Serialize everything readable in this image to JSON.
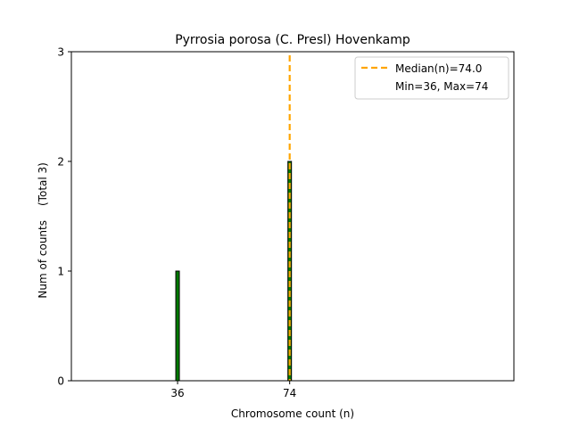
{
  "chart_data": {
    "type": "bar",
    "title": "Pyrrosia porosa (C. Presl) Hovenkamp",
    "xlabel": "Chromosome count (n)",
    "ylabel": "Num of counts",
    "ylabel_total": "(Total 3)",
    "x": [
      36,
      74
    ],
    "values": [
      1,
      2
    ],
    "xlim": [
      0,
      150
    ],
    "ylim": [
      0,
      3
    ],
    "xticks": [
      "36",
      "74"
    ],
    "yticks": [
      "0",
      "1",
      "2",
      "3"
    ],
    "median": 74.0,
    "legend": {
      "placement": "top-right",
      "median_label": "Median(n)=74.0",
      "range_label": "Min=36, Max=74"
    },
    "colors": {
      "bar_fill": "#007a00",
      "bar_edge": "#000000",
      "median_line": "#ffa500"
    }
  }
}
